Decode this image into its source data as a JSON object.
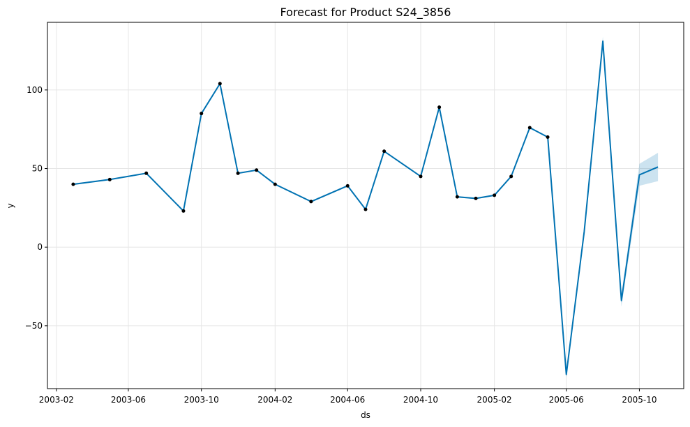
{
  "chart_data": {
    "type": "line",
    "title": "Forecast for Product S24_3856",
    "xlabel": "ds",
    "ylabel": "y",
    "x_ticks": [
      "2003-02",
      "2003-06",
      "2003-10",
      "2004-02",
      "2004-06",
      "2004-10",
      "2005-02",
      "2005-06",
      "2005-10"
    ],
    "y_ticks": [
      -50,
      0,
      50,
      100
    ],
    "xlim": [
      "2003-01-17",
      "2005-12-14"
    ],
    "ylim": [
      -90,
      143
    ],
    "grid": true,
    "colors": {
      "line": "#0072b2",
      "band": "#0072b2",
      "points": "#000000"
    },
    "observed": {
      "x": [
        "2003-03-01",
        "2003-05-01",
        "2003-07-01",
        "2003-09-01",
        "2003-10-01",
        "2003-11-01",
        "2003-12-01",
        "2004-01-01",
        "2004-02-01",
        "2004-04-01",
        "2004-06-01",
        "2004-07-01",
        "2004-08-01",
        "2004-10-01",
        "2004-11-01",
        "2004-12-01",
        "2005-01-01",
        "2005-02-01",
        "2005-03-01",
        "2005-04-01",
        "2005-05-01"
      ],
      "y": [
        40,
        43,
        47,
        23,
        85,
        104,
        47,
        49,
        40,
        29,
        39,
        24,
        61,
        45,
        89,
        32,
        31,
        33,
        45,
        76,
        70
      ]
    },
    "forecast": {
      "x": [
        "2003-03-01",
        "2003-05-01",
        "2003-07-01",
        "2003-09-01",
        "2003-10-01",
        "2003-11-01",
        "2003-12-01",
        "2004-01-01",
        "2004-02-01",
        "2004-04-01",
        "2004-06-01",
        "2004-07-01",
        "2004-08-01",
        "2004-10-01",
        "2004-11-01",
        "2004-12-01",
        "2005-01-01",
        "2005-02-01",
        "2005-03-01",
        "2005-04-01",
        "2005-05-01",
        "2005-06-01",
        "2005-07-01",
        "2005-08-01",
        "2005-09-01",
        "2005-10-01",
        "2005-11-01"
      ],
      "y": [
        40,
        43,
        47,
        23,
        85,
        104,
        47,
        49,
        40,
        29,
        39,
        24,
        61,
        45,
        89,
        32,
        31,
        33,
        45,
        76,
        70,
        -81,
        10,
        131,
        -34,
        46,
        51
      ],
      "lower": [
        39.5,
        42.5,
        46.5,
        22.5,
        84.5,
        103.5,
        46.5,
        48.5,
        39.5,
        28.5,
        38.5,
        23.5,
        60.5,
        44.5,
        88.5,
        31.5,
        30.5,
        32.5,
        44.5,
        75.5,
        69.5,
        -83,
        8,
        128,
        -38,
        39,
        42
      ],
      "upper": [
        40.5,
        43.5,
        47.5,
        23.5,
        85.5,
        104.5,
        47.5,
        49.5,
        40.5,
        29.5,
        39.5,
        24.5,
        61.5,
        45.5,
        89.5,
        32.5,
        31.5,
        33.5,
        45.5,
        76.5,
        70.5,
        -79,
        12,
        134,
        -30,
        53,
        60
      ]
    }
  }
}
